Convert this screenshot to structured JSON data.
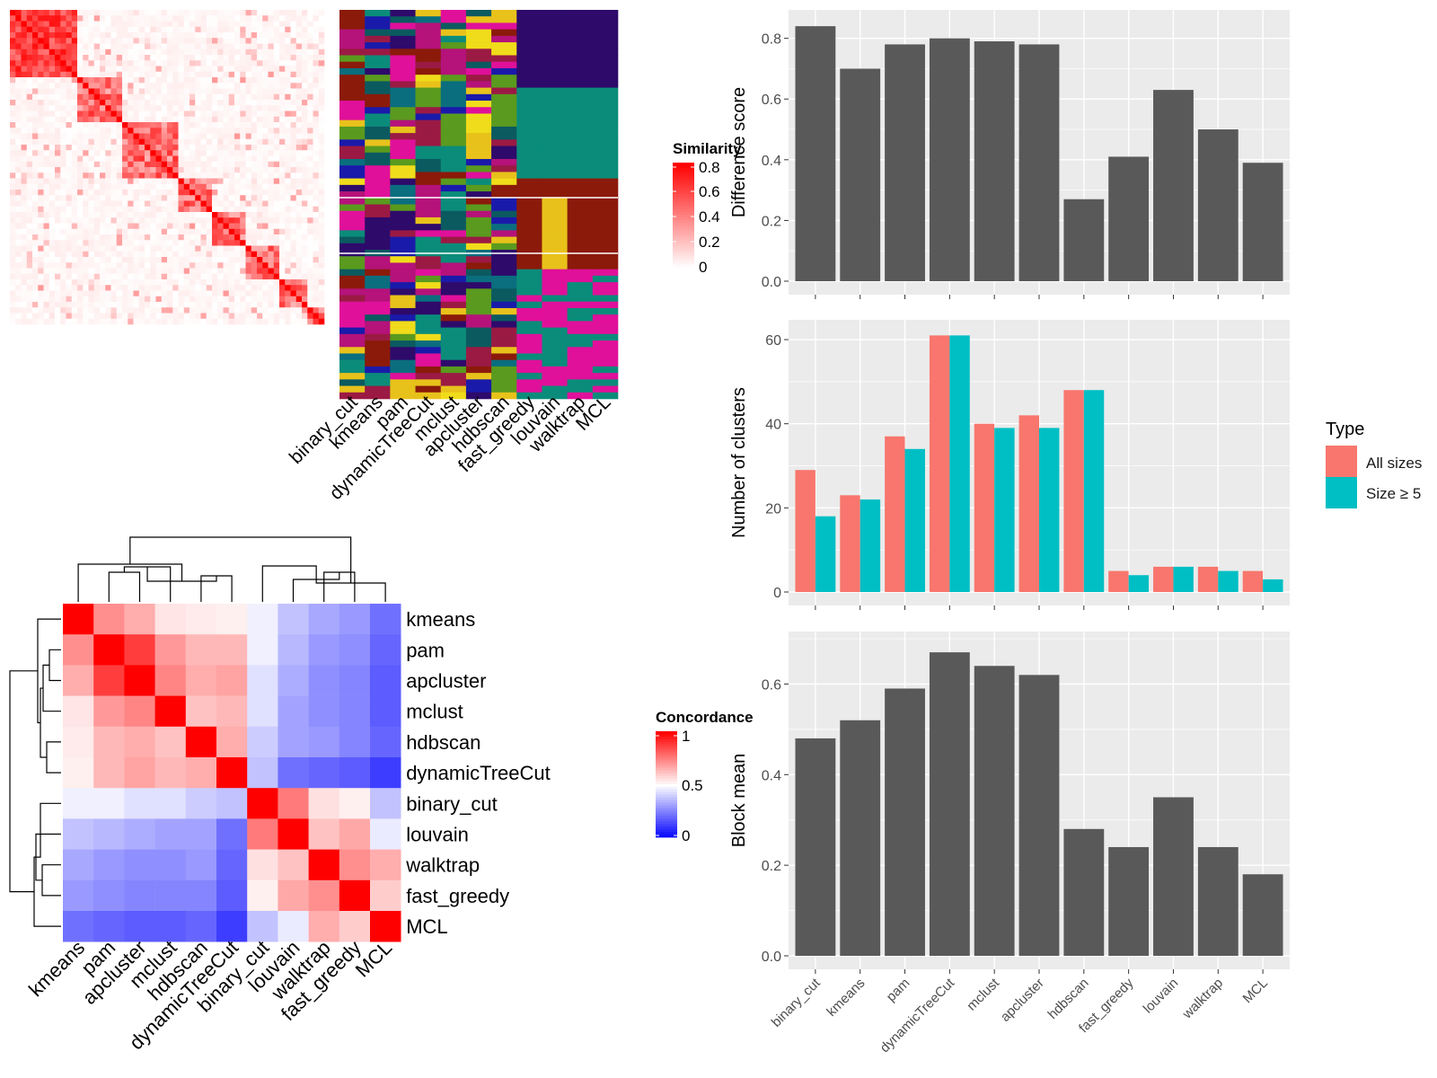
{
  "methods_order": [
    "binary_cut",
    "kmeans",
    "pam",
    "dynamicTreeCut",
    "mclust",
    "apcluster",
    "hdbscan",
    "fast_greedy",
    "louvain",
    "walktrap",
    "MCL"
  ],
  "legend_similarity": {
    "title": "Similarity",
    "ticks": [
      "0.8",
      "0.6",
      "0.4",
      "0.2",
      "0"
    ]
  },
  "legend_concordance": {
    "title": "Concordance",
    "ticks": [
      "1",
      "0.5",
      "0"
    ]
  },
  "legend_type": {
    "title": "Type",
    "items": [
      "All sizes",
      "Size ≥ 5"
    ],
    "colors": [
      "#F8766D",
      "#00BFC4"
    ]
  },
  "colors": {
    "bar": "#595959",
    "panel": "#EBEBEB",
    "heat_high": "#FF0000",
    "heat_mid": "#FFFFFF",
    "heat_low": "#0000FF"
  },
  "chart_data": [
    {
      "type": "bar",
      "categories": [
        "binary_cut",
        "kmeans",
        "pam",
        "dynamicTreeCut",
        "mclust",
        "apcluster",
        "hdbscan",
        "fast_greedy",
        "louvain",
        "walktrap",
        "MCL"
      ],
      "values": [
        0.84,
        0.7,
        0.78,
        0.8,
        0.79,
        0.78,
        0.27,
        0.41,
        0.63,
        0.5,
        0.39
      ],
      "ylabel": "Difference score",
      "yticks": [
        "0.0",
        "0.2",
        "0.4",
        "0.6",
        "0.8"
      ],
      "ylim": [
        0,
        0.87
      ]
    },
    {
      "type": "bar",
      "categories": [
        "binary_cut",
        "kmeans",
        "pam",
        "dynamicTreeCut",
        "mclust",
        "apcluster",
        "hdbscan",
        "fast_greedy",
        "louvain",
        "walktrap",
        "MCL"
      ],
      "series": [
        {
          "name": "All sizes",
          "values": [
            29,
            23,
            37,
            61,
            40,
            42,
            48,
            5,
            6,
            6,
            5
          ]
        },
        {
          "name": "Size ≥ 5",
          "values": [
            18,
            22,
            34,
            61,
            39,
            39,
            48,
            4,
            6,
            5,
            3
          ]
        }
      ],
      "ylabel": "Number of clusters",
      "yticks": [
        "0",
        "20",
        "40",
        "60"
      ],
      "ylim": [
        0,
        63
      ]
    },
    {
      "type": "bar",
      "categories": [
        "binary_cut",
        "kmeans",
        "pam",
        "dynamicTreeCut",
        "mclust",
        "apcluster",
        "hdbscan",
        "fast_greedy",
        "louvain",
        "walktrap",
        "MCL"
      ],
      "values": [
        0.48,
        0.52,
        0.59,
        0.67,
        0.64,
        0.62,
        0.28,
        0.24,
        0.35,
        0.24,
        0.18
      ],
      "ylabel": "Block mean",
      "yticks": [
        "0.0",
        "0.2",
        "0.4",
        "0.6"
      ],
      "ylim": [
        0,
        0.7
      ]
    },
    {
      "type": "heatmap",
      "labels": [
        "kmeans",
        "pam",
        "apcluster",
        "mclust",
        "hdbscan",
        "dynamicTreeCut",
        "binary_cut",
        "louvain",
        "walktrap",
        "fast_greedy",
        "MCL"
      ],
      "values": [
        [
          1.0,
          0.72,
          0.66,
          0.55,
          0.54,
          0.53,
          0.47,
          0.38,
          0.33,
          0.3,
          0.22
        ],
        [
          0.72,
          1.0,
          0.88,
          0.7,
          0.64,
          0.64,
          0.47,
          0.36,
          0.3,
          0.28,
          0.2
        ],
        [
          0.66,
          0.88,
          1.0,
          0.74,
          0.66,
          0.68,
          0.44,
          0.34,
          0.28,
          0.26,
          0.18
        ],
        [
          0.55,
          0.7,
          0.74,
          1.0,
          0.62,
          0.64,
          0.44,
          0.32,
          0.28,
          0.26,
          0.18
        ],
        [
          0.54,
          0.64,
          0.66,
          0.62,
          1.0,
          0.66,
          0.4,
          0.32,
          0.3,
          0.26,
          0.2
        ],
        [
          0.53,
          0.64,
          0.68,
          0.64,
          0.66,
          1.0,
          0.38,
          0.22,
          0.2,
          0.18,
          0.12
        ],
        [
          0.47,
          0.47,
          0.44,
          0.44,
          0.4,
          0.38,
          1.0,
          0.76,
          0.56,
          0.53,
          0.38
        ],
        [
          0.38,
          0.36,
          0.34,
          0.32,
          0.32,
          0.22,
          0.76,
          1.0,
          0.62,
          0.67,
          0.46
        ],
        [
          0.33,
          0.3,
          0.28,
          0.28,
          0.3,
          0.2,
          0.56,
          0.62,
          1.0,
          0.72,
          0.66
        ],
        [
          0.3,
          0.28,
          0.26,
          0.26,
          0.26,
          0.18,
          0.53,
          0.67,
          0.72,
          1.0,
          0.6
        ],
        [
          0.22,
          0.2,
          0.18,
          0.18,
          0.2,
          0.12,
          0.38,
          0.46,
          0.66,
          0.6,
          1.0
        ]
      ]
    }
  ]
}
